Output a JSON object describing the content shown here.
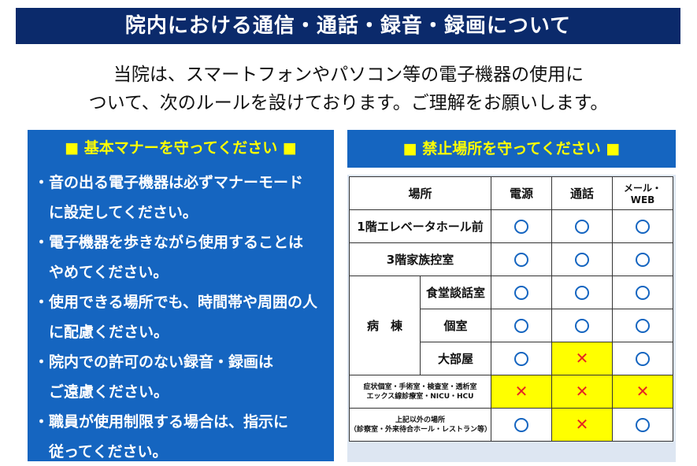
{
  "title": "院内における通信・通話・録音・録画について",
  "intro": {
    "line1": "当院は、スマートフォンやパソコン等の電子機器の使用に",
    "line2": "ついて、次のルールを設けております。ご理解をお願いします。"
  },
  "manners": {
    "heading": "■ 基本マナーを守ってください ■",
    "lines": [
      "・音の出る電子機器は必ずマナーモード",
      "　に設定してください。",
      "・電子機器を歩きながら使用することは",
      "　やめてください。",
      "・使用できる場所でも、時間帯や周囲の人",
      "　に配慮ください。",
      "・院内での許可のない録音・録画は",
      "　ご遠慮ください。",
      "・職員が使用制限する場合は、指示に",
      "　従ってください。"
    ]
  },
  "prohibited": {
    "heading": "■ 禁止場所を守ってください ■",
    "columns": [
      "場所",
      "電源",
      "通話",
      "メール・WEB"
    ],
    "rows": {
      "elevator": {
        "place": "1階エレベータホール前",
        "power": "ok",
        "call": "ok",
        "mail": "ok"
      },
      "family": {
        "place": "3階家族控室",
        "power": "ok",
        "call": "ok",
        "mail": "ok"
      },
      "ward_group": "病　棟",
      "dining": {
        "place": "食堂談話室",
        "power": "ok",
        "call": "ok",
        "mail": "ok"
      },
      "private": {
        "place": "個室",
        "power": "ok",
        "call": "ok",
        "mail": "ok"
      },
      "large": {
        "place": "大部屋",
        "power": "ok",
        "call": "ng",
        "mail": "ok"
      },
      "icu": {
        "place_line1": "症状個室・手術室・検査室・透析室",
        "place_line2": "エックス線診療室・NICU・HCU",
        "power": "ng",
        "call": "ng",
        "mail": "ng"
      },
      "other": {
        "place_line1": "上記以外の場所",
        "place_line2": "（診察室・外来待合ホール・レストラン等）",
        "power": "ok",
        "call": "ng",
        "mail": "ok"
      }
    },
    "symbols": {
      "ok": "circle-icon",
      "ng": "cross-icon"
    },
    "colors": {
      "ok": "#1565c0",
      "ng": "#e52521",
      "ng_cell": "#ffff00"
    }
  },
  "colors": {
    "title_bar": "#0b2a6b",
    "panel": "#1565c0",
    "heading_text": "#ffff00"
  }
}
